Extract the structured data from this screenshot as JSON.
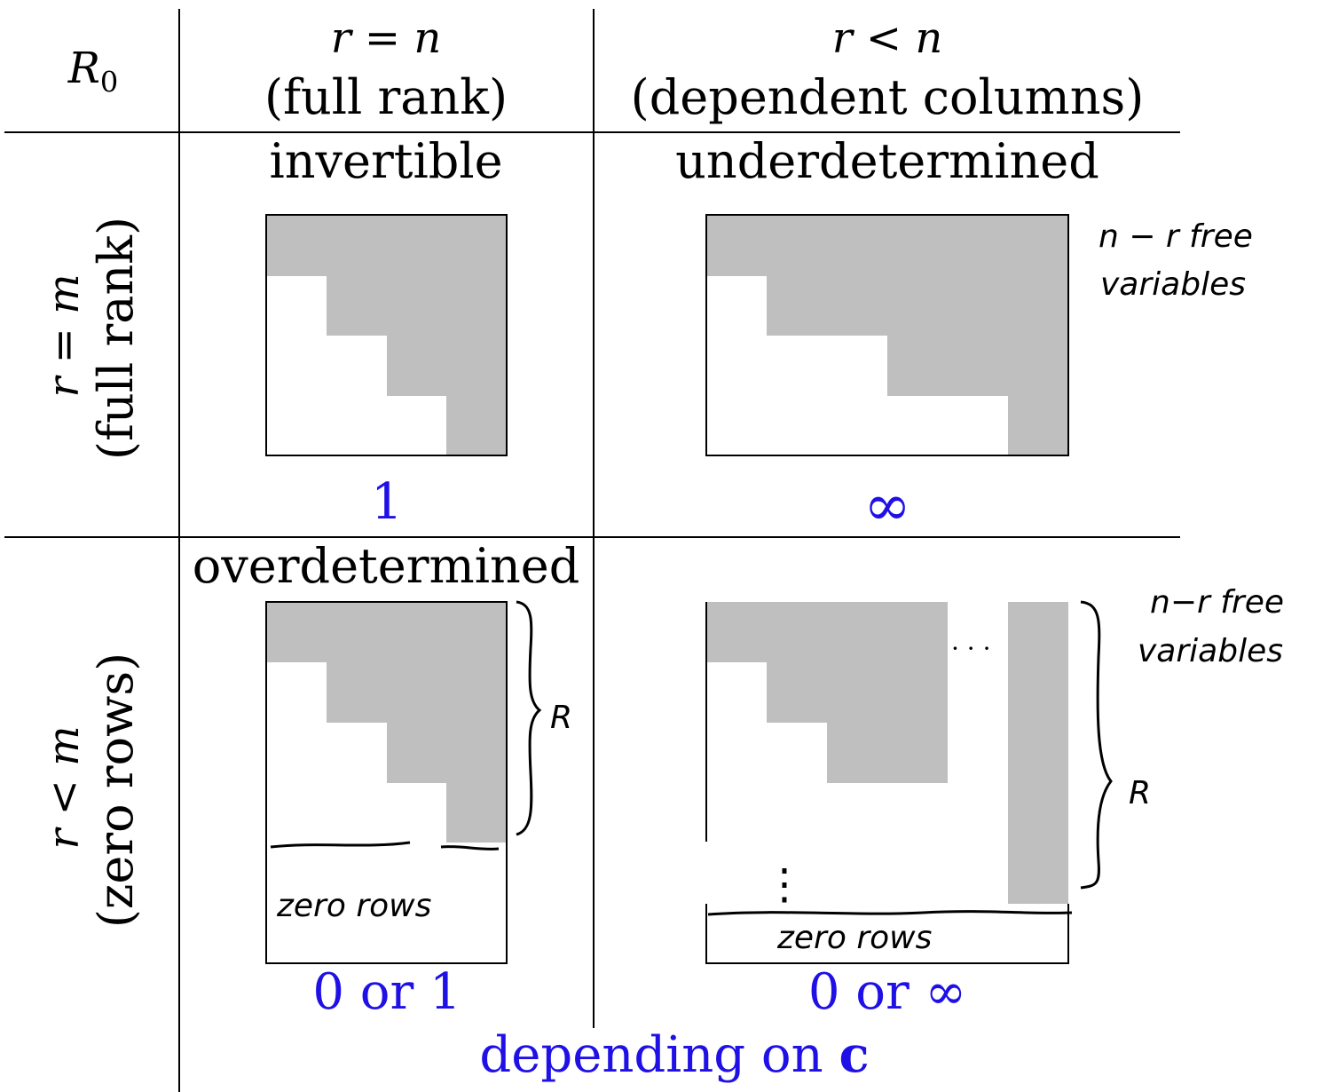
{
  "corner_label": "R0",
  "columns": [
    {
      "condition": "r = n",
      "description": "(full rank)"
    },
    {
      "condition": "r < n",
      "description": "(dependent columns)"
    }
  ],
  "rows": [
    {
      "condition": "r = m",
      "description": "(full rank)"
    },
    {
      "condition": "r < m",
      "description": "(zero rows)"
    }
  ],
  "cells": {
    "top_left": {
      "title": "invertible",
      "count": "1"
    },
    "top_right": {
      "title": "underdetermined",
      "count": "∞",
      "note_line1": "n − r free",
      "note_line2": "variables"
    },
    "bottom_left": {
      "title": "overdetermined",
      "count": "0 or 1",
      "zero_rows": "zero rows",
      "brace_label": "R"
    },
    "bottom_right": {
      "count": "0 or ∞",
      "zero_rows": "zero rows",
      "brace_label": "R",
      "note_line1": "n−r free",
      "note_line2": "variables",
      "dots_h": "· · ·",
      "dots_v": "⋮"
    }
  },
  "footer": {
    "text": "depending on ",
    "bold": "c"
  },
  "colors": {
    "blue": "#1f10e6",
    "gray": "#bfbfbf"
  }
}
